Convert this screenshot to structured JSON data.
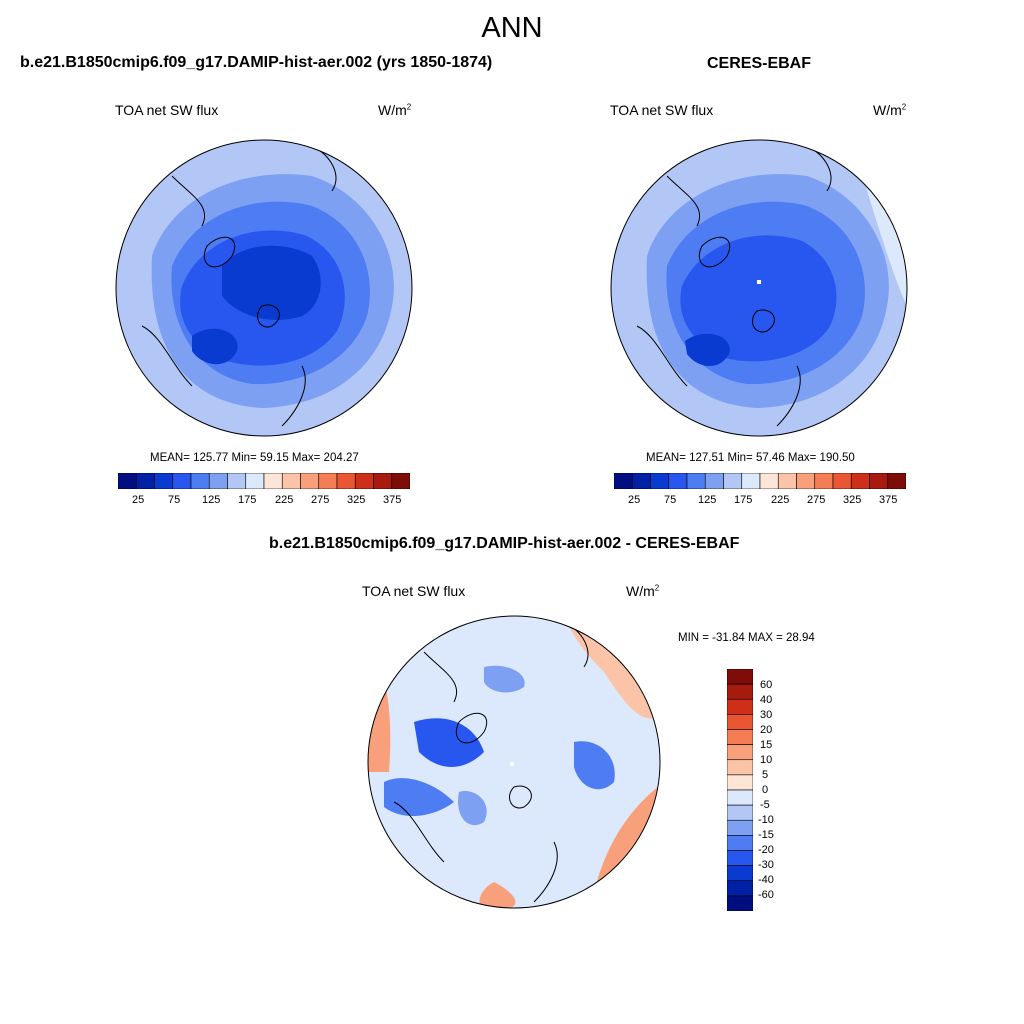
{
  "figure": {
    "title": "ANN"
  },
  "panels": [
    {
      "id": "model",
      "title": "b.e21.B1850cmip6.f09_g17.DAMIP-hist-aer.002 (yrs 1850-1874)",
      "left_label": "TOA net SW flux",
      "units_base": "W/m",
      "units_exp": "2",
      "stats": "MEAN= 125.77  Min=  59.15  Max= 204.27",
      "colorbar_ticks": [
        "25",
        "75",
        "125",
        "175",
        "225",
        "275",
        "325",
        "375"
      ]
    },
    {
      "id": "obs",
      "title": "CERES-EBAF",
      "left_label": "TOA net SW flux",
      "units_base": "W/m",
      "units_exp": "2",
      "stats": "MEAN= 127.51  Min=  57.46  Max= 190.50",
      "colorbar_ticks": [
        "25",
        "75",
        "125",
        "175",
        "225",
        "275",
        "325",
        "375"
      ]
    },
    {
      "id": "diff",
      "title": "b.e21.B1850cmip6.f09_g17.DAMIP-hist-aer.002 - CERES-EBAF",
      "left_label": "TOA net SW flux",
      "units_base": "W/m",
      "units_exp": "2",
      "stats": "MIN = -31.84 MAX =  28.94",
      "colorbar_ticks": [
        "60",
        "40",
        "30",
        "20",
        "15",
        "10",
        "5",
        "0",
        "-5",
        "-10",
        "-15",
        "-20",
        "-30",
        "-40",
        "-60"
      ]
    }
  ],
  "colors": {
    "abs_scale": [
      "#000e7f",
      "#0020a6",
      "#0a3bd0",
      "#2757ef",
      "#4d7cf3",
      "#7ea0f3",
      "#b2c7f6",
      "#dce8fb",
      "#fde5d8",
      "#fbc4a8",
      "#f8a07c",
      "#f47d56",
      "#ea5532",
      "#cf2f18",
      "#a71a0e",
      "#7d0d06"
    ],
    "diff_scale": [
      "#7d0d06",
      "#a71a0e",
      "#cf2f18",
      "#ea5532",
      "#f47d56",
      "#f8a07c",
      "#fbc4a8",
      "#fde5d8",
      "#dce8fb",
      "#b2c7f6",
      "#7ea0f3",
      "#4d7cf3",
      "#2757ef",
      "#0a3bd0",
      "#0020a6",
      "#000e7f"
    ]
  }
}
